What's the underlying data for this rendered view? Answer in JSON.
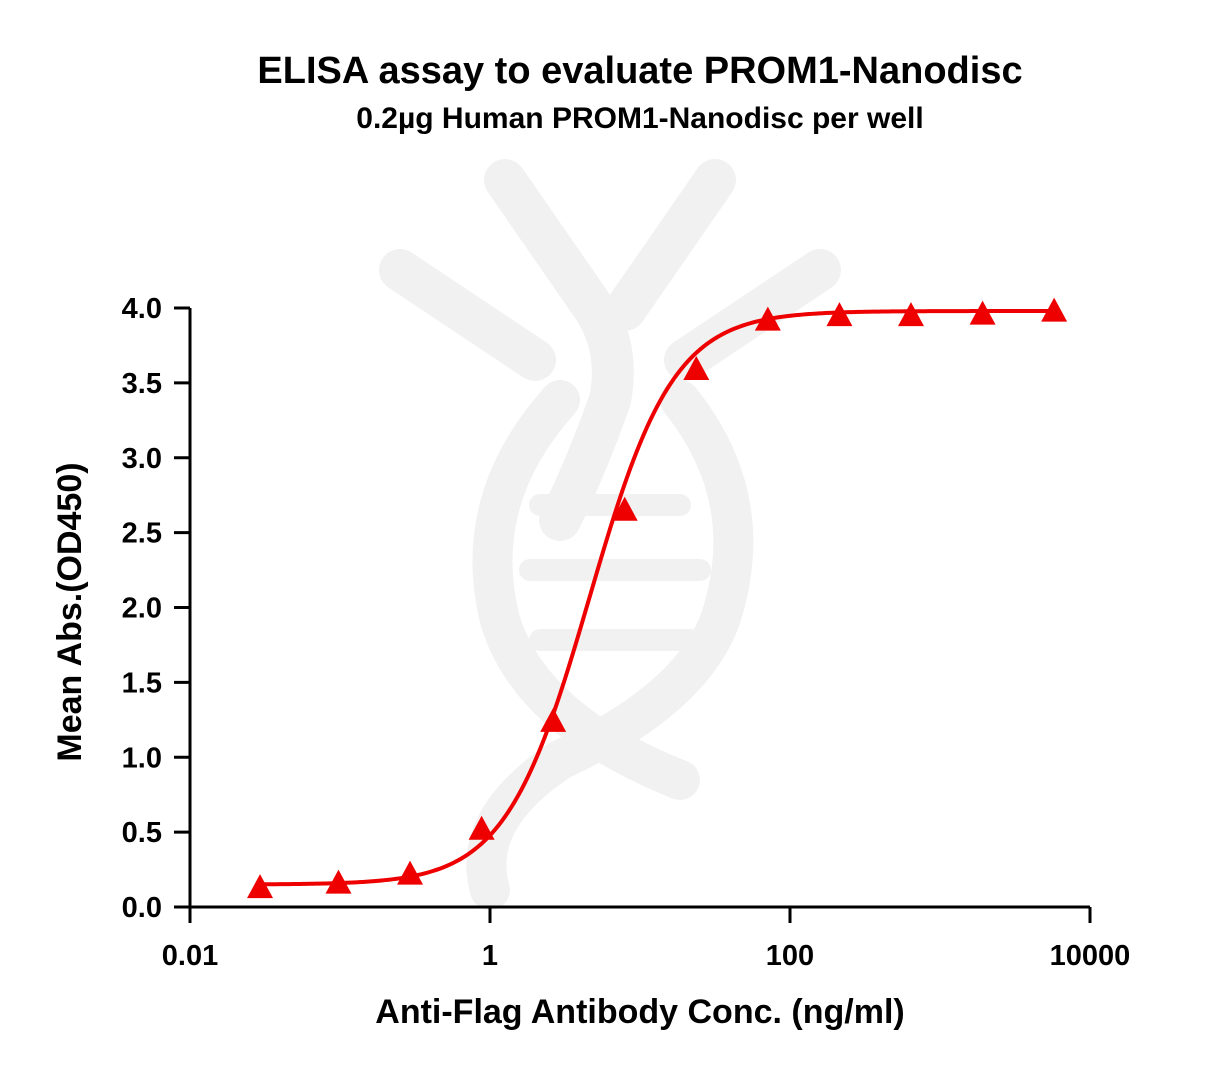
{
  "chart_data": {
    "type": "scatter",
    "title": "ELISA assay to evaluate PROM1-Nanodisc",
    "subtitle": "0.2µg Human PROM1-Nanodisc per well",
    "xlabel": "Anti-Flag Antibody Conc. (ng/ml)",
    "ylabel": "Mean Abs.(OD450)",
    "x_scale": "log",
    "xlim": [
      0.01,
      10000
    ],
    "ylim": [
      0,
      4.0
    ],
    "x_ticks": [
      0.01,
      1,
      100,
      10000
    ],
    "x_tick_labels": [
      "0.01",
      "1",
      "100",
      "10000"
    ],
    "y_ticks": [
      0,
      0.5,
      1.0,
      1.5,
      2.0,
      2.5,
      3.0,
      3.5,
      4.0
    ],
    "y_tick_labels": [
      "0.0",
      "0.5",
      "1.0",
      "1.5",
      "2.0",
      "2.5",
      "3.0",
      "3.5",
      "4.0"
    ],
    "grid": false,
    "legend": "none",
    "series": [
      {
        "marker": "triangle",
        "color": "#ee0000",
        "x": [
          0.0293,
          0.0977,
          0.293,
          0.8789,
          2.6367,
          7.9102,
          23.73,
          71.19,
          213.6,
          640.7,
          1922,
          5766
        ],
        "y": [
          0.12,
          0.15,
          0.21,
          0.51,
          1.23,
          2.64,
          3.58,
          3.91,
          3.94,
          3.94,
          3.95,
          3.97
        ],
        "fit": {
          "model": "4PL",
          "bottom": 0.15,
          "top": 3.98,
          "ec50": 4.6,
          "hill": 1.55
        }
      }
    ]
  }
}
